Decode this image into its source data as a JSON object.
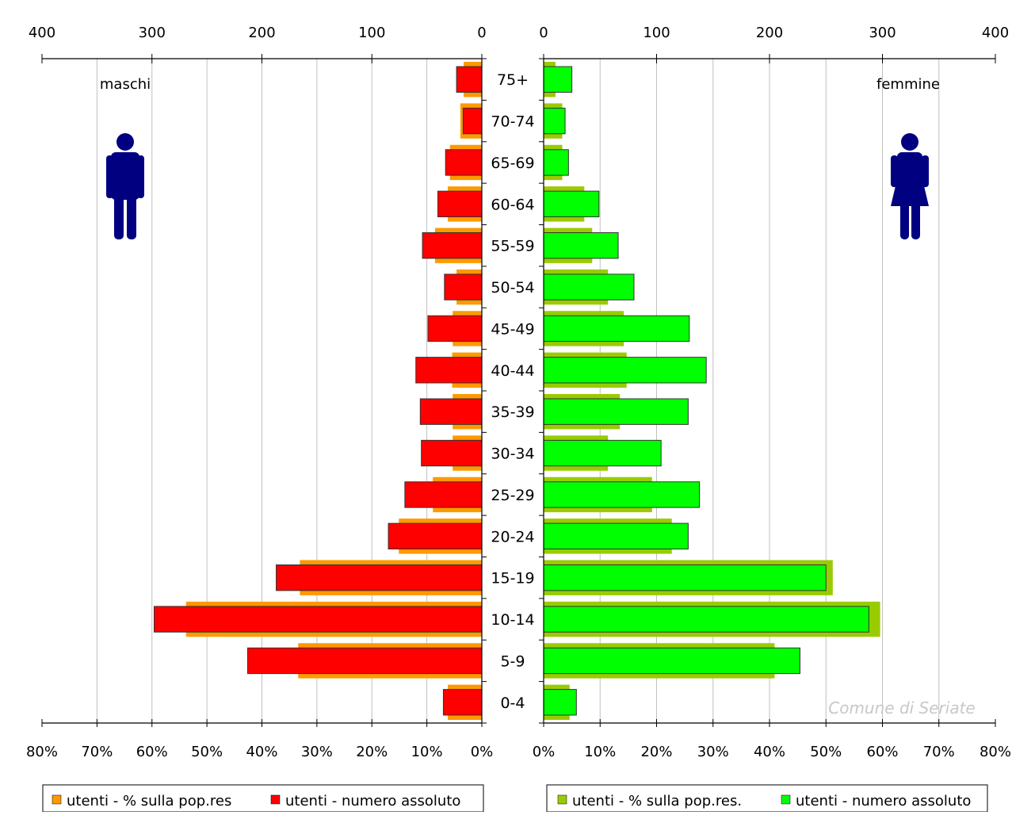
{
  "chart_data": {
    "type": "bar",
    "subtype": "population-pyramid",
    "categories": [
      "75+",
      "70-74",
      "65-69",
      "60-64",
      "55-59",
      "50-54",
      "45-49",
      "40-44",
      "35-39",
      "30-34",
      "25-29",
      "20-24",
      "15-19",
      "10-14",
      "5-9",
      "0-4"
    ],
    "top_axis_ticks_left": [
      "400",
      "300",
      "200",
      "100",
      "0"
    ],
    "top_axis_ticks_right": [
      "0",
      "100",
      "200",
      "300",
      "400"
    ],
    "bottom_axis_ticks_left": [
      "80%",
      "70%",
      "60%",
      "50%",
      "40%",
      "30%",
      "20%",
      "10%",
      "0%"
    ],
    "bottom_axis_ticks_right": [
      "0%",
      "10%",
      "20%",
      "30%",
      "40%",
      "50%",
      "60%",
      "70%",
      "80%"
    ],
    "absolute_range": [
      0,
      400
    ],
    "percent_range": [
      0,
      80
    ],
    "grid": true,
    "left_panel": {
      "label": "maschi",
      "series": [
        {
          "name": "utenti - % sulla pop.res",
          "unit": "%",
          "color": "#ff9900",
          "values": [
            3.3,
            3.9,
            5.8,
            6.2,
            8.5,
            4.6,
            5.3,
            5.4,
            5.3,
            5.3,
            8.9,
            15.1,
            33.1,
            53.8,
            33.4,
            6.2
          ]
        },
        {
          "name": "utenti - numero assoluto",
          "unit": "count",
          "color": "#ff0000",
          "values": [
            23,
            17,
            33,
            40,
            54,
            34,
            49,
            60,
            56,
            55,
            70,
            85,
            187,
            298,
            213,
            35
          ]
        }
      ]
    },
    "right_panel": {
      "label": "femmine",
      "series": [
        {
          "name": "utenti - % sulla pop.res.",
          "unit": "%",
          "color": "#99cc00",
          "values": [
            2.1,
            3.3,
            3.3,
            7.2,
            8.6,
            11.4,
            14.2,
            14.7,
            13.5,
            11.4,
            19.2,
            22.7,
            51.2,
            59.6,
            40.9,
            4.6
          ]
        },
        {
          "name": "utenti - numero assoluto",
          "unit": "count",
          "color": "#00ff00",
          "values": [
            25,
            19,
            22,
            49,
            66,
            80,
            129,
            144,
            128,
            104,
            138,
            128,
            250,
            288,
            227,
            29
          ]
        }
      ]
    }
  },
  "watermark": "Comune di Seriate",
  "icons": {
    "male": "male-person-icon",
    "female": "female-person-icon",
    "icon_color": "#000080"
  }
}
